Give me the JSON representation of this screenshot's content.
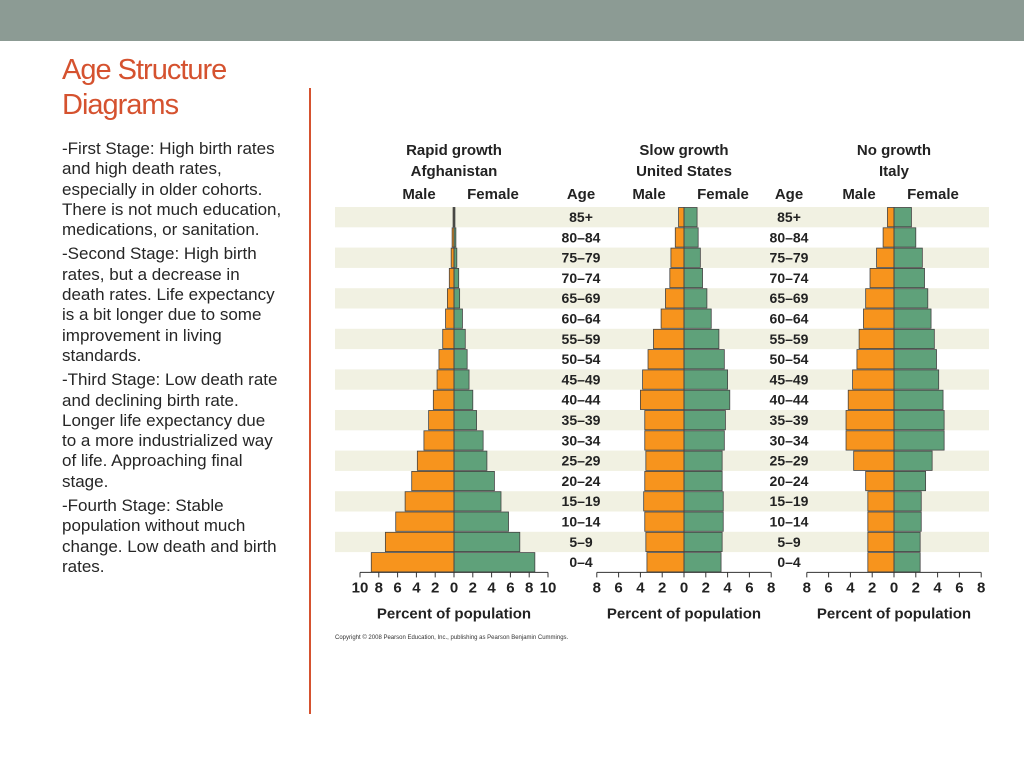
{
  "slide": {
    "title_line1": "Age Structure",
    "title_line2": "Diagrams",
    "paragraphs": [
      "-First Stage: High birth rates and high death rates, especially in older cohorts. There is not much education, medications, or sanitation.",
      "-Second Stage: High birth rates, but a decrease in death rates. Life expectancy is a bit longer due to some improvement in living standards.",
      "-Third Stage: Low death rate and declining birth rate. Longer life expectancy due to a more industrialized way of life. Approaching final stage.",
      "-Fourth Stage: Stable population without much change. Low death and birth rates."
    ],
    "copyright": "Copyright © 2008 Pearson Education, Inc., publishing as Pearson Benjamin Cummings."
  },
  "colors": {
    "topbar": "#8c9b94",
    "title": "#d5522f",
    "male": "#f7941d",
    "female": "#5fa17a",
    "stripe": "#f1f1e2",
    "figure_bg": "#ffffff"
  },
  "chart_data": [
    {
      "type": "bar",
      "orientation": "horizontal-pyramid",
      "title": "Rapid growth",
      "subtitle": "Afghanistan",
      "male_label": "Male",
      "female_label": "Female",
      "age_label": "Age",
      "xlabel": "Percent of population",
      "xticks": [
        "10",
        "8",
        "6",
        "4",
        "2",
        "0",
        "2",
        "4",
        "6",
        "8",
        "10"
      ],
      "xlim": [
        -10,
        10
      ],
      "categories": [
        "85+",
        "80–84",
        "75–79",
        "70–74",
        "65–69",
        "60–64",
        "55–59",
        "50–54",
        "45–49",
        "40–44",
        "35–39",
        "30–34",
        "25–29",
        "20–24",
        "15–19",
        "10–14",
        "5–9",
        "0–4"
      ],
      "series": [
        {
          "name": "Male",
          "values": [
            0.1,
            0.2,
            0.3,
            0.5,
            0.7,
            0.9,
            1.2,
            1.6,
            1.8,
            2.2,
            2.7,
            3.2,
            3.9,
            4.5,
            5.2,
            6.2,
            7.3,
            8.8
          ]
        },
        {
          "name": "Female",
          "values": [
            0.1,
            0.2,
            0.3,
            0.5,
            0.6,
            0.9,
            1.2,
            1.4,
            1.6,
            2.0,
            2.4,
            3.1,
            3.5,
            4.3,
            5.0,
            5.8,
            7.0,
            8.6
          ]
        }
      ]
    },
    {
      "type": "bar",
      "orientation": "horizontal-pyramid",
      "title": "Slow growth",
      "subtitle": "United States",
      "male_label": "Male",
      "female_label": "Female",
      "age_label": "Age",
      "xlabel": "Percent of population",
      "xticks": [
        "8",
        "6",
        "4",
        "2",
        "0",
        "2",
        "4",
        "6",
        "8"
      ],
      "xlim": [
        -8,
        8
      ],
      "categories": [
        "85+",
        "80–84",
        "75–79",
        "70–74",
        "65–69",
        "60–64",
        "55–59",
        "50–54",
        "45–49",
        "40–44",
        "35–39",
        "30–34",
        "25–29",
        "20–24",
        "15–19",
        "10–14",
        "5–9",
        "0–4"
      ],
      "series": [
        {
          "name": "Male",
          "values": [
            0.5,
            0.8,
            1.2,
            1.3,
            1.7,
            2.1,
            2.8,
            3.3,
            3.8,
            4.0,
            3.6,
            3.6,
            3.5,
            3.6,
            3.7,
            3.6,
            3.5,
            3.4
          ]
        },
        {
          "name": "Female",
          "values": [
            1.2,
            1.3,
            1.5,
            1.7,
            2.1,
            2.5,
            3.2,
            3.7,
            4.0,
            4.2,
            3.8,
            3.7,
            3.5,
            3.5,
            3.6,
            3.6,
            3.5,
            3.4
          ]
        }
      ]
    },
    {
      "type": "bar",
      "orientation": "horizontal-pyramid",
      "title": "No growth",
      "subtitle": "Italy",
      "male_label": "Male",
      "female_label": "Female",
      "age_label": "Age",
      "xlabel": "Percent of population",
      "xticks": [
        "8",
        "6",
        "4",
        "2",
        "0",
        "2",
        "4",
        "6",
        "8"
      ],
      "xlim": [
        -8,
        8
      ],
      "categories": [
        "85+",
        "80–84",
        "75–79",
        "70–74",
        "65–69",
        "60–64",
        "55–59",
        "50–54",
        "45–49",
        "40–44",
        "35–39",
        "30–34",
        "25–29",
        "20–24",
        "15–19",
        "10–14",
        "5–9",
        "0–4"
      ],
      "series": [
        {
          "name": "Male",
          "values": [
            0.6,
            1.0,
            1.6,
            2.2,
            2.6,
            2.8,
            3.2,
            3.4,
            3.8,
            4.2,
            4.4,
            4.4,
            3.7,
            2.6,
            2.4,
            2.4,
            2.4,
            2.4
          ]
        },
        {
          "name": "Female",
          "values": [
            1.6,
            2.0,
            2.6,
            2.8,
            3.1,
            3.4,
            3.7,
            3.9,
            4.1,
            4.5,
            4.6,
            4.6,
            3.5,
            2.9,
            2.5,
            2.5,
            2.4,
            2.4
          ]
        }
      ]
    }
  ]
}
